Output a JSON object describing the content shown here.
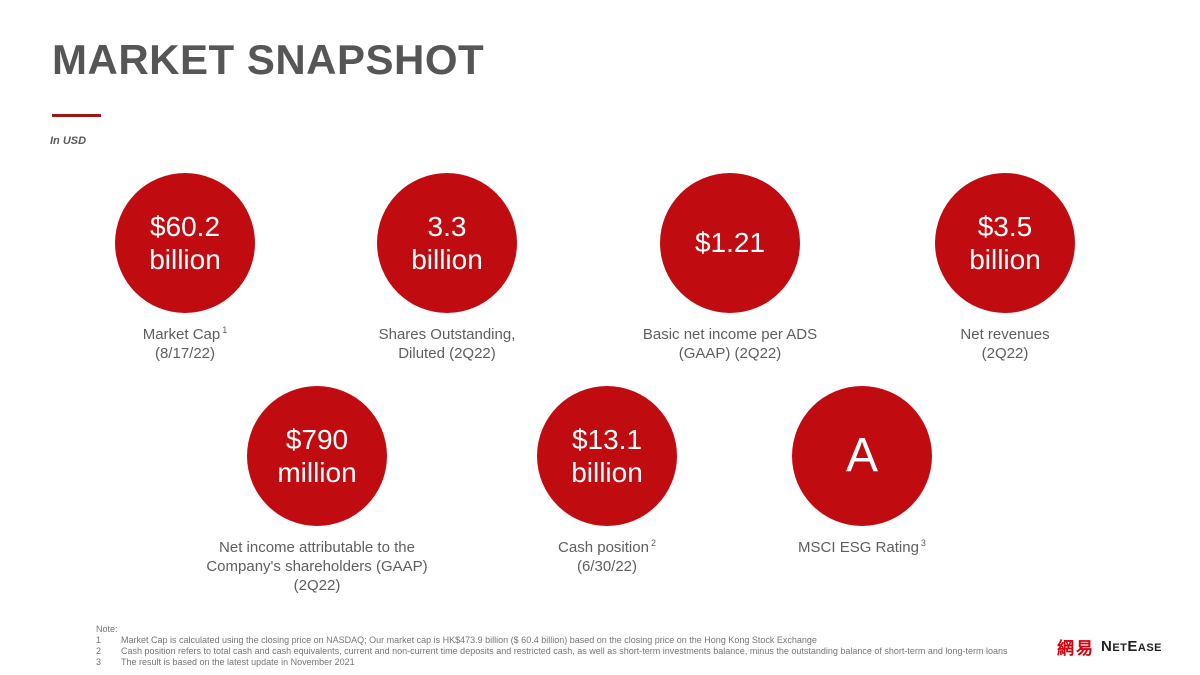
{
  "slide": {
    "title": "MARKET SNAPSHOT",
    "unit_note": "In USD",
    "colors": {
      "circle_red": "#C00C11",
      "accent_line_red": "#A11418",
      "title_gray": "#565656",
      "label_gray": "#5E5E5E",
      "note_gray": "#757575",
      "logo_red": "#D8000F"
    },
    "metrics": [
      {
        "v1": "$60.2",
        "v2": "billion",
        "l1": "Market Cap",
        "sup1": "1",
        "l2": "(8/17/22)"
      },
      {
        "v1": "3.3",
        "v2": "billion",
        "l1": "Shares Outstanding,",
        "l2": "Diluted (2Q22)"
      },
      {
        "v1": "$1.21",
        "l1": "Basic net income per ADS",
        "l2": "(GAAP) (2Q22)"
      },
      {
        "v1": "$3.5",
        "v2": "billion",
        "l1": "Net revenues",
        "l2": "(2Q22)"
      },
      {
        "v1": "$790",
        "v2": "million",
        "l1": "Net income attributable to the",
        "l2": "Company's shareholders (GAAP)",
        "l3": "(2Q22)"
      },
      {
        "v1": "$13.1",
        "v2": "billion",
        "l1": "Cash position",
        "sup1": "2",
        "l2": "(6/30/22)"
      },
      {
        "v1": "A",
        "l1": "MSCI ESG Rating",
        "sup1": "3"
      }
    ],
    "notes": {
      "heading": "Note:",
      "items": [
        {
          "num": "1",
          "text": "Market Cap is calculated using the closing price on NASDAQ; Our market cap is HK$473.9 billion ($ 60.4 billion) based on the closing price on the Hong Kong Stock Exchange"
        },
        {
          "num": "2",
          "text": "Cash position refers to total cash and cash equivalents, current and non-current time deposits and restricted cash, as well as short-term investments balance, minus the outstanding balance of short-term and long-term loans"
        },
        {
          "num": "3",
          "text": "The result is based on the latest update in November 2021"
        }
      ]
    },
    "logo": {
      "cjk": "網易",
      "name": "NetEase"
    }
  }
}
